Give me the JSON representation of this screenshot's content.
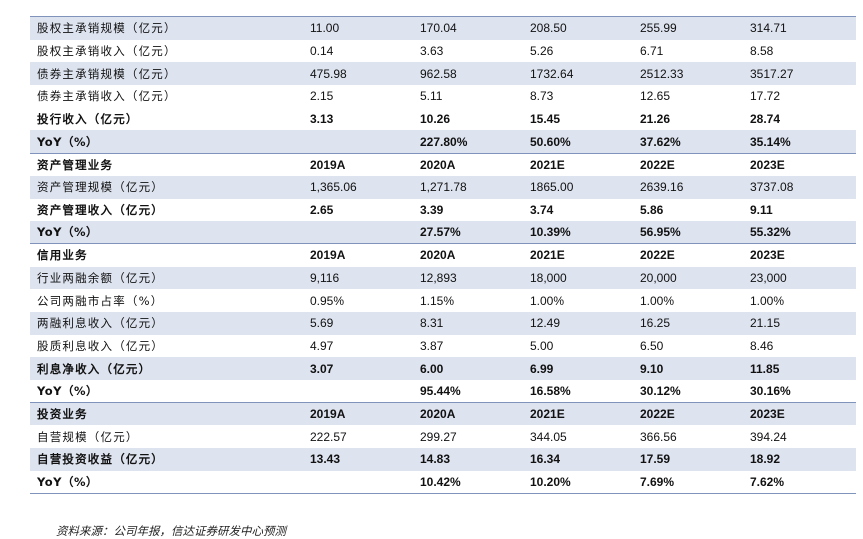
{
  "table": {
    "rows": [
      {
        "style": "alt",
        "cells": [
          "股权主承销规模（亿元）",
          "11.00",
          "170.04",
          "208.50",
          "255.99",
          "314.71"
        ]
      },
      {
        "style": "",
        "cells": [
          "股权主承销收入（亿元）",
          "0.14",
          "3.63",
          "5.26",
          "6.71",
          "8.58"
        ]
      },
      {
        "style": "alt",
        "cells": [
          "债券主承销规模（亿元）",
          "475.98",
          "962.58",
          "1732.64",
          "2512.33",
          "3517.27"
        ]
      },
      {
        "style": "",
        "cells": [
          "债券主承销收入（亿元）",
          "2.15",
          "5.11",
          "8.73",
          "12.65",
          "17.72"
        ]
      },
      {
        "style": "bold",
        "cells": [
          "投行收入（亿元）",
          "3.13",
          "10.26",
          "15.45",
          "21.26",
          "28.74"
        ]
      },
      {
        "style": "alt yoy",
        "cells": [
          "YoY（%）",
          "",
          "227.80%",
          "50.60%",
          "37.62%",
          "35.14%"
        ]
      },
      {
        "style": "hdr",
        "cells": [
          "资产管理业务",
          "2019A",
          "2020A",
          "2021E",
          "2022E",
          "2023E"
        ]
      },
      {
        "style": "alt",
        "cells": [
          "资产管理规模（亿元）",
          "1,365.06",
          "1,271.78",
          "1865.00",
          "2639.16",
          "3737.08"
        ]
      },
      {
        "style": "bold",
        "cells": [
          "资产管理收入（亿元）",
          "2.65",
          "3.39",
          "3.74",
          "5.86",
          "9.11"
        ]
      },
      {
        "style": "alt yoy",
        "cells": [
          "YoY（%）",
          "",
          "27.57%",
          "10.39%",
          "56.95%",
          "55.32%"
        ]
      },
      {
        "style": "hdr",
        "cells": [
          "信用业务",
          "2019A",
          "2020A",
          "2021E",
          "2022E",
          "2023E"
        ]
      },
      {
        "style": "alt",
        "cells": [
          "行业两融余额（亿元）",
          "9,116",
          "12,893",
          "18,000",
          "20,000",
          "23,000"
        ]
      },
      {
        "style": "",
        "cells": [
          "公司两融市占率（%）",
          "0.95%",
          "1.15%",
          "1.00%",
          "1.00%",
          "1.00%"
        ]
      },
      {
        "style": "alt",
        "cells": [
          "两融利息收入（亿元）",
          "5.69",
          "8.31",
          "12.49",
          "16.25",
          "21.15"
        ]
      },
      {
        "style": "",
        "cells": [
          "股质利息收入（亿元）",
          "4.97",
          "3.87",
          "5.00",
          "6.50",
          "8.46"
        ]
      },
      {
        "style": "alt bold",
        "cells": [
          "利息净收入（亿元）",
          "3.07",
          "6.00",
          "6.99",
          "9.10",
          "11.85"
        ]
      },
      {
        "style": "yoy",
        "cells": [
          "YoY（%）",
          "",
          "95.44%",
          "16.58%",
          "30.12%",
          "30.16%"
        ]
      },
      {
        "style": "alt hdr",
        "cells": [
          "投资业务",
          "2019A",
          "2020A",
          "2021E",
          "2022E",
          "2023E"
        ]
      },
      {
        "style": "",
        "cells": [
          "自营规模（亿元）",
          "222.57",
          "299.27",
          "344.05",
          "366.56",
          "394.24"
        ]
      },
      {
        "style": "alt bold",
        "cells": [
          "自营投资收益（亿元）",
          "13.43",
          "14.83",
          "16.34",
          "17.59",
          "18.92"
        ]
      },
      {
        "style": "yoy",
        "cells": [
          "YoY（%）",
          "",
          "10.42%",
          "10.20%",
          "7.69%",
          "7.62%"
        ]
      }
    ]
  },
  "source_note": "资料来源：公司年报，信达证券研发中心预测"
}
